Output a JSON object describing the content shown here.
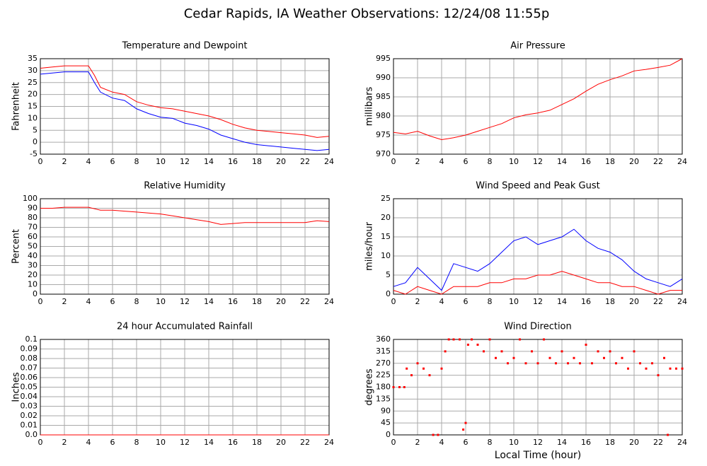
{
  "title": "Cedar Rapids, IA Weather Observations: 12/24/08 11:55p",
  "chart_data": [
    {
      "type": "line",
      "title": "Temperature and Dewpoint",
      "ylabel": "Fahrenheit",
      "x": [
        0,
        1,
        2,
        3,
        4,
        4.5,
        5,
        6,
        7,
        8,
        9,
        10,
        11,
        12,
        13,
        14,
        15,
        16,
        17,
        18,
        19,
        20,
        21,
        22,
        23,
        24
      ],
      "series": [
        {
          "color": "#ff0000",
          "values": [
            31,
            31.5,
            32,
            32,
            32,
            28,
            23,
            21,
            20,
            17,
            15.5,
            14.5,
            14,
            13,
            12,
            11,
            9.5,
            7.5,
            6,
            5,
            4.5,
            4,
            3.5,
            3,
            2,
            2.5
          ]
        },
        {
          "color": "#0000ff",
          "values": [
            28.5,
            29,
            29.5,
            29.5,
            29.5,
            25,
            21,
            18.5,
            17.5,
            14,
            12,
            10.5,
            10,
            8,
            7,
            5.5,
            3,
            1.5,
            0,
            -1,
            -1.5,
            -2,
            -2.5,
            -3,
            -3.5,
            -3
          ]
        }
      ],
      "xlim": [
        0,
        24
      ],
      "xticks": [
        0,
        2,
        4,
        6,
        8,
        10,
        12,
        14,
        16,
        18,
        20,
        22,
        24
      ],
      "ylim": [
        -5,
        35
      ],
      "yticks": [
        -5,
        0,
        5,
        10,
        15,
        20,
        25,
        30,
        35
      ],
      "grid": true
    },
    {
      "type": "line",
      "title": "Air Pressure",
      "ylabel": "millibars",
      "x": [
        0,
        1,
        2,
        3,
        4,
        5,
        6,
        7,
        8,
        9,
        10,
        11,
        12,
        13,
        14,
        15,
        16,
        17,
        18,
        19,
        20,
        21,
        22,
        23,
        24
      ],
      "series": [
        {
          "color": "#ff0000",
          "values": [
            975.7,
            975.3,
            976,
            974.8,
            973.8,
            974.3,
            975,
            976,
            977,
            978,
            979.5,
            980.3,
            980.8,
            981.5,
            983,
            984.5,
            986.5,
            988.3,
            989.5,
            990.5,
            991.8,
            992.2,
            992.7,
            993.3,
            995
          ]
        }
      ],
      "xlim": [
        0,
        24
      ],
      "xticks": [
        0,
        2,
        4,
        6,
        8,
        10,
        12,
        14,
        16,
        18,
        20,
        22,
        24
      ],
      "ylim": [
        970,
        995
      ],
      "yticks": [
        970,
        975,
        980,
        985,
        990,
        995
      ],
      "grid": true
    },
    {
      "type": "line",
      "title": "Relative Humidity",
      "ylabel": "Percent",
      "x": [
        0,
        1,
        2,
        3,
        4,
        5,
        6,
        7,
        8,
        9,
        10,
        11,
        12,
        13,
        14,
        15,
        16,
        17,
        18,
        19,
        20,
        21,
        22,
        23,
        24
      ],
      "series": [
        {
          "color": "#ff0000",
          "values": [
            90,
            90,
            91,
            91,
            91,
            88,
            88,
            87,
            86,
            85,
            84,
            82,
            80,
            78,
            76,
            73,
            74,
            75,
            75,
            75,
            75,
            75,
            75,
            77,
            76
          ]
        }
      ],
      "xlim": [
        0,
        24
      ],
      "xticks": [
        0,
        2,
        4,
        6,
        8,
        10,
        12,
        14,
        16,
        18,
        20,
        22,
        24
      ],
      "ylim": [
        0,
        100
      ],
      "yticks": [
        0,
        10,
        20,
        30,
        40,
        50,
        60,
        70,
        80,
        90,
        100
      ],
      "grid": true
    },
    {
      "type": "line",
      "title": "Wind Speed and Peak Gust",
      "ylabel": "miles/hour",
      "x": [
        0,
        1,
        2,
        3,
        4,
        5,
        6,
        7,
        8,
        9,
        10,
        11,
        12,
        13,
        14,
        15,
        16,
        17,
        18,
        19,
        20,
        21,
        22,
        23,
        24
      ],
      "series": [
        {
          "color": "#0000ff",
          "values": [
            2,
            3,
            7,
            4,
            1,
            8,
            7,
            6,
            8,
            11,
            14,
            15,
            13,
            14,
            15,
            17,
            14,
            12,
            11,
            9,
            6,
            4,
            3,
            2,
            4
          ]
        },
        {
          "color": "#ff0000",
          "values": [
            1,
            0,
            2,
            1,
            0,
            2,
            2,
            2,
            3,
            3,
            4,
            4,
            5,
            5,
            6,
            5,
            4,
            3,
            3,
            2,
            2,
            1,
            0,
            1,
            1
          ]
        }
      ],
      "xlim": [
        0,
        24
      ],
      "xticks": [
        0,
        2,
        4,
        6,
        8,
        10,
        12,
        14,
        16,
        18,
        20,
        22,
        24
      ],
      "ylim": [
        0,
        25
      ],
      "yticks": [
        0,
        5,
        10,
        15,
        20,
        25
      ],
      "grid": true
    },
    {
      "type": "line",
      "title": "24 hour Accumulated Rainfall",
      "ylabel": "Inches",
      "x": [
        0,
        24
      ],
      "series": [
        {
          "color": "#ff0000",
          "values": [
            0,
            0
          ]
        }
      ],
      "xlim": [
        0,
        24
      ],
      "xticks": [
        0,
        2,
        4,
        6,
        8,
        10,
        12,
        14,
        16,
        18,
        20,
        22,
        24
      ],
      "ylim": [
        0,
        0.1
      ],
      "yticks": [
        {
          "value": 0,
          "label": "0.0"
        },
        0.01,
        0.02,
        0.03,
        0.04,
        0.05,
        0.06,
        0.07,
        0.08,
        0.09,
        0.1
      ],
      "grid": true
    },
    {
      "type": "scatter",
      "title": "Wind Direction",
      "ylabel": "degrees",
      "xlabel": "Local Time (hour)",
      "x": [
        0,
        0.5,
        0.9,
        1.1,
        1.5,
        2,
        2.5,
        3,
        3.3,
        3.7,
        4,
        4.3,
        4.6,
        5,
        5.5,
        5.8,
        6,
        6.2,
        6.5,
        7,
        7.5,
        8,
        8.5,
        9,
        9.5,
        10,
        10.5,
        11,
        11.5,
        12,
        12.5,
        13,
        13.5,
        14,
        14.5,
        15,
        15.5,
        16,
        16.5,
        17,
        17.5,
        18,
        18.5,
        19,
        19.5,
        20,
        20.5,
        21,
        21.5,
        22,
        22.5,
        22.8,
        23,
        23.5,
        24
      ],
      "series": [
        {
          "color": "#ff0000",
          "values": [
            180,
            180,
            180,
            250,
            225,
            270,
            250,
            225,
            0,
            0,
            250,
            315,
            360,
            360,
            360,
            20,
            45,
            340,
            360,
            340,
            315,
            360,
            290,
            315,
            270,
            290,
            360,
            270,
            315,
            270,
            360,
            290,
            270,
            315,
            270,
            290,
            270,
            340,
            270,
            315,
            290,
            315,
            270,
            290,
            250,
            315,
            270,
            250,
            270,
            225,
            290,
            0,
            250,
            250,
            250
          ]
        }
      ],
      "xlim": [
        0,
        24
      ],
      "xticks": [
        0,
        2,
        4,
        6,
        8,
        10,
        12,
        14,
        16,
        18,
        20,
        22,
        24
      ],
      "ylim": [
        0,
        360
      ],
      "yticks": [
        0,
        45,
        90,
        135,
        180,
        225,
        270,
        315,
        360
      ],
      "grid": true
    }
  ]
}
